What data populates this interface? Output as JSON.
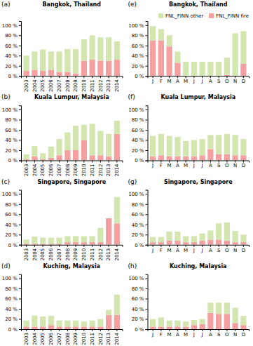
{
  "chart_data": [
    {
      "type": "bar",
      "stacked": true,
      "title": "Bangkok, Thailand",
      "annotations": [
        "(a)"
      ],
      "grid": false,
      "categories": [
        "2003",
        "2004",
        "2005",
        "2006",
        "2007",
        "2008",
        "2009",
        "2010",
        "2011",
        "2012",
        "2013",
        "2014"
      ],
      "series": [
        {
          "color": "#f4a0a0",
          "values": [
            10,
            12,
            10,
            12,
            8,
            8,
            5,
            30,
            32,
            30,
            30,
            32
          ]
        },
        {
          "color": "#d4e6b0",
          "values": [
            30,
            36,
            42,
            36,
            40,
            45,
            48,
            42,
            48,
            46,
            46,
            36
          ]
        }
      ],
      "ylim": [
        0,
        108
      ],
      "yticks": [
        {
          "value": 0,
          "label": "0 %"
        },
        {
          "value": 20,
          "label": "20 %"
        },
        {
          "value": 40,
          "label": "40 %"
        },
        {
          "value": 60,
          "label": "60 %"
        },
        {
          "value": 80,
          "label": "80 %"
        },
        {
          "value": 100,
          "label": "100 %"
        }
      ]
    },
    {
      "type": "bar",
      "stacked": true,
      "title": "Kuala Lumpur, Malaysia",
      "annotations": [
        "(b)"
      ],
      "grid": false,
      "categories": [
        "2003",
        "2004",
        "2005",
        "2006",
        "2007",
        "2008",
        "2009",
        "2010",
        "2011",
        "2012",
        "2013",
        "2014"
      ],
      "series": [
        {
          "color": "#f4a0a0",
          "values": [
            2,
            8,
            2,
            5,
            10,
            20,
            20,
            40,
            10,
            10,
            8,
            52
          ]
        },
        {
          "color": "#d4e6b0",
          "values": [
            10,
            20,
            12,
            22,
            32,
            35,
            48,
            30,
            62,
            48,
            44,
            26
          ]
        }
      ],
      "ylim": [
        0,
        108
      ],
      "yticks": [
        {
          "value": 0,
          "label": "0 %"
        },
        {
          "value": 20,
          "label": "20 %"
        },
        {
          "value": 40,
          "label": "40 %"
        },
        {
          "value": 60,
          "label": "60 %"
        },
        {
          "value": 80,
          "label": "80 %"
        },
        {
          "value": 100,
          "label": "100 %"
        }
      ]
    },
    {
      "type": "bar",
      "stacked": true,
      "title": "Singapore, Singapore",
      "annotations": [
        "(c)"
      ],
      "grid": false,
      "categories": [
        "2003",
        "2004",
        "2005",
        "2006",
        "2007",
        "2008",
        "2009",
        "2010",
        "2011",
        "2012",
        "2013",
        "2014"
      ],
      "series": [
        {
          "color": "#f4a0a0",
          "values": [
            2,
            2,
            2,
            2,
            2,
            5,
            5,
            5,
            5,
            5,
            52,
            42
          ]
        },
        {
          "color": "#d4e6b0",
          "values": [
            8,
            14,
            12,
            12,
            12,
            12,
            12,
            12,
            12,
            28,
            0,
            52
          ]
        }
      ],
      "ylim": [
        0,
        108
      ],
      "yticks": [
        {
          "value": 0,
          "label": "0 %"
        },
        {
          "value": 20,
          "label": "20 %"
        },
        {
          "value": 40,
          "label": "40 %"
        },
        {
          "value": 60,
          "label": "60 %"
        },
        {
          "value": 80,
          "label": "80 %"
        },
        {
          "value": 100,
          "label": "100 %"
        }
      ]
    },
    {
      "type": "bar",
      "stacked": true,
      "title": "Kuching, Malaysia",
      "annotations": [
        "(d)"
      ],
      "grid": false,
      "categories": [
        "2003",
        "2004",
        "2005",
        "2006",
        "2007",
        "2008",
        "2009",
        "2010",
        "2011",
        "2012",
        "2013",
        "2014"
      ],
      "series": [
        {
          "color": "#f4a0a0",
          "values": [
            5,
            5,
            5,
            8,
            5,
            5,
            5,
            5,
            5,
            5,
            28,
            28
          ]
        },
        {
          "color": "#d4e6b0",
          "values": [
            12,
            22,
            20,
            18,
            12,
            12,
            12,
            10,
            12,
            15,
            10,
            40
          ]
        }
      ],
      "ylim": [
        0,
        108
      ],
      "yticks": [
        {
          "value": 0,
          "label": "0 %"
        },
        {
          "value": 20,
          "label": "20 %"
        },
        {
          "value": 40,
          "label": "40 %"
        },
        {
          "value": 60,
          "label": "60 %"
        },
        {
          "value": 80,
          "label": "80 %"
        },
        {
          "value": 100,
          "label": "100 %"
        }
      ]
    },
    {
      "type": "bar",
      "stacked": true,
      "title": "Bangkok, Thailand",
      "annotations": [
        "(e)"
      ],
      "grid": false,
      "legend": "upper right",
      "categories": [
        "J",
        "F",
        "M",
        "A",
        "M",
        "J",
        "J",
        "A",
        "S",
        "O",
        "N",
        "D"
      ],
      "series": [
        {
          "name": "FNL_FINN fire",
          "color": "#f4a0a0",
          "values": [
            70,
            70,
            58,
            26,
            0,
            0,
            0,
            0,
            0,
            2,
            0,
            24
          ]
        },
        {
          "name": "FNL_FINN other",
          "color": "#d4e6b0",
          "values": [
            28,
            22,
            22,
            22,
            28,
            28,
            28,
            28,
            28,
            34,
            84,
            64
          ]
        }
      ],
      "ylim": [
        0,
        108
      ],
      "yticks": [
        {
          "value": 0,
          "label": "0 %"
        },
        {
          "value": 20,
          "label": "20 %"
        },
        {
          "value": 40,
          "label": "40 %"
        },
        {
          "value": 60,
          "label": "60 %"
        },
        {
          "value": 80,
          "label": "80 %"
        },
        {
          "value": 100,
          "label": "100 %"
        }
      ]
    },
    {
      "type": "bar",
      "stacked": true,
      "title": "Kuala Lumpur, Malaysia",
      "annotations": [
        "(f)"
      ],
      "grid": false,
      "categories": [
        "J",
        "F",
        "M",
        "A",
        "M",
        "J",
        "J",
        "A",
        "S",
        "O",
        "N",
        "D"
      ],
      "series": [
        {
          "color": "#f4a0a0",
          "values": [
            8,
            10,
            8,
            8,
            8,
            8,
            10,
            22,
            12,
            12,
            10,
            10
          ]
        },
        {
          "color": "#d4e6b0",
          "values": [
            40,
            42,
            40,
            38,
            30,
            32,
            32,
            28,
            38,
            40,
            40,
            32
          ]
        }
      ],
      "ylim": [
        0,
        108
      ],
      "yticks": [
        {
          "value": 0,
          "label": "0 %"
        },
        {
          "value": 20,
          "label": "20 %"
        },
        {
          "value": 40,
          "label": "40 %"
        },
        {
          "value": 60,
          "label": "60 %"
        },
        {
          "value": 80,
          "label": "80 %"
        },
        {
          "value": 100,
          "label": "100 %"
        }
      ]
    },
    {
      "type": "bar",
      "stacked": true,
      "title": "Singapore, Singapore",
      "annotations": [
        "(g)"
      ],
      "grid": false,
      "categories": [
        "J",
        "F",
        "M",
        "A",
        "M",
        "J",
        "J",
        "A",
        "S",
        "O",
        "N",
        "D"
      ],
      "series": [
        {
          "color": "#f4a0a0",
          "values": [
            5,
            5,
            8,
            8,
            5,
            5,
            8,
            10,
            10,
            8,
            5,
            5
          ]
        },
        {
          "color": "#d4e6b0",
          "values": [
            10,
            10,
            18,
            18,
            12,
            12,
            14,
            18,
            32,
            36,
            22,
            15
          ]
        }
      ],
      "ylim": [
        0,
        108
      ],
      "yticks": [
        {
          "value": 0,
          "label": "0 %"
        },
        {
          "value": 20,
          "label": "20 %"
        },
        {
          "value": 40,
          "label": "40 %"
        },
        {
          "value": 60,
          "label": "60 %"
        },
        {
          "value": 80,
          "label": "80 %"
        },
        {
          "value": 100,
          "label": "100 %"
        }
      ]
    },
    {
      "type": "bar",
      "stacked": true,
      "title": "Kuching, Malaysia",
      "annotations": [
        "(h)"
      ],
      "grid": false,
      "categories": [
        "J",
        "F",
        "M",
        "A",
        "M",
        "J",
        "J",
        "A",
        "S",
        "O",
        "N",
        "D"
      ],
      "series": [
        {
          "color": "#f4a0a0",
          "values": [
            5,
            5,
            5,
            5,
            5,
            8,
            10,
            32,
            30,
            30,
            12,
            8
          ]
        },
        {
          "color": "#d4e6b0",
          "values": [
            15,
            18,
            12,
            12,
            10,
            10,
            10,
            20,
            22,
            22,
            30,
            18
          ]
        }
      ],
      "ylim": [
        0,
        108
      ],
      "yticks": [
        {
          "value": 0,
          "label": "0 %"
        },
        {
          "value": 20,
          "label": "20 %"
        },
        {
          "value": 40,
          "label": "40 %"
        },
        {
          "value": 60,
          "label": "60 %"
        },
        {
          "value": 80,
          "label": "80 %"
        },
        {
          "value": 100,
          "label": "100 %"
        }
      ]
    }
  ]
}
